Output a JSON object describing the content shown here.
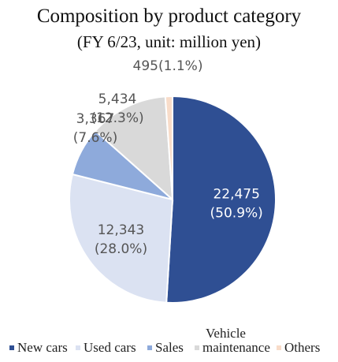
{
  "chart_data": {
    "type": "pie",
    "title": "Composition by product category",
    "subtitle": "(FY 6/23, unit: million yen)",
    "slices": [
      {
        "name": "New cars",
        "value": 22475,
        "value_label": "22,475",
        "pct_label": "(50.9%)",
        "color": "#2f4f93",
        "label_color": "#ffffff"
      },
      {
        "name": "Used cars",
        "value": 12343,
        "value_label": "12,343",
        "pct_label": "(28.0%)",
        "color": "#dbe2f2",
        "label_color": "#555555"
      },
      {
        "name": "Sales",
        "value": 3367,
        "value_label": "3,367",
        "pct_label": "(7.6%)",
        "color": "#8eaadb",
        "label_color": "#555555"
      },
      {
        "name": "Vehicle maintenance",
        "value": 5434,
        "value_label": "5,434",
        "pct_label": "(12.3%)",
        "color": "#d9d9d9",
        "label_color": "#555555"
      },
      {
        "name": "Others",
        "value": 495,
        "value_label": "495",
        "pct_label": "(1.1%)",
        "color": "#f8dcc9",
        "label_color": "#555555"
      }
    ],
    "legend": {
      "placement": "bottom",
      "items": [
        "New cars",
        "Used cars",
        "Sales",
        "Vehicle maintenance",
        "Others"
      ]
    }
  }
}
